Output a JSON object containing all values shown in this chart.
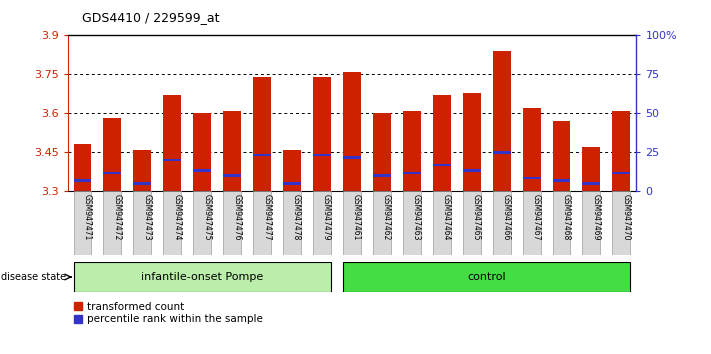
{
  "title": "GDS4410 / 229599_at",
  "samples": [
    "GSM947471",
    "GSM947472",
    "GSM947473",
    "GSM947474",
    "GSM947475",
    "GSM947476",
    "GSM947477",
    "GSM947478",
    "GSM947479",
    "GSM947461",
    "GSM947462",
    "GSM947463",
    "GSM947464",
    "GSM947465",
    "GSM947466",
    "GSM947467",
    "GSM947468",
    "GSM947469",
    "GSM947470"
  ],
  "red_values": [
    3.48,
    3.58,
    3.46,
    3.67,
    3.6,
    3.61,
    3.74,
    3.46,
    3.74,
    3.76,
    3.6,
    3.61,
    3.67,
    3.68,
    3.84,
    3.62,
    3.57,
    3.47,
    3.61
  ],
  "blue_values": [
    3.34,
    3.37,
    3.33,
    3.42,
    3.38,
    3.36,
    3.44,
    3.33,
    3.44,
    3.43,
    3.36,
    3.37,
    3.4,
    3.38,
    3.45,
    3.35,
    3.34,
    3.33,
    3.37
  ],
  "group1_label": "infantile-onset Pompe",
  "group2_label": "control",
  "group1_count": 9,
  "group2_count": 10,
  "ymin": 3.3,
  "ymax": 3.9,
  "yticks": [
    3.3,
    3.45,
    3.6,
    3.75,
    3.9
  ],
  "right_yticks": [
    0,
    25,
    50,
    75,
    100
  ],
  "right_yticklabels": [
    "0",
    "25",
    "50",
    "75",
    "100%"
  ],
  "bar_color": "#cc2200",
  "blue_color": "#3333cc",
  "group1_bg": "#bbeeaa",
  "group2_bg": "#44dd44",
  "tick_bg": "#d8d8d8",
  "legend_red_label": "transformed count",
  "legend_blue_label": "percentile rank within the sample",
  "disease_state_label": "disease state"
}
